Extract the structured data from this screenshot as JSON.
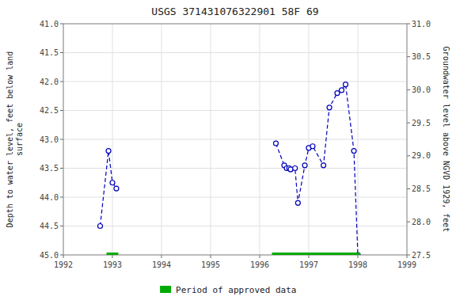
{
  "chart_data": {
    "type": "line",
    "title": "USGS 371431076322901 58F 69",
    "ylabel": "Depth to water level, feet below land\nsurface",
    "y2label": "Groundwater level above NGVD 1929, feet",
    "xlim": [
      1992,
      1999
    ],
    "xticks": [
      1992,
      1993,
      1994,
      1995,
      1996,
      1997,
      1998,
      1999
    ],
    "ylim": [
      45.0,
      41.0
    ],
    "yticks": [
      {
        "value": 41.0,
        "label": "41.0"
      },
      41.5,
      {
        "value": 42.0,
        "label": "42.0"
      },
      42.5,
      {
        "value": 43.0,
        "label": "43.0"
      },
      43.5,
      {
        "value": 44.0,
        "label": "44.0"
      },
      44.5,
      {
        "value": 45.0,
        "label": "45.0"
      }
    ],
    "y2lim": [
      27.5,
      31.0
    ],
    "y2ticks": [
      {
        "value": 31.0,
        "label": "31.0"
      },
      30.5,
      {
        "value": 30.0,
        "label": "30.0"
      },
      29.5,
      {
        "value": 29.0,
        "label": "29.0"
      },
      28.5,
      {
        "value": 28.0,
        "label": "28.0"
      },
      27.5
    ],
    "grid": true,
    "legend": "bottom",
    "series": [
      {
        "color": "#0000bb",
        "marker": "circle",
        "line_style": "dashed",
        "x": [
          1992.75,
          1992.92,
          1993.0,
          1993.08
        ],
        "values": [
          44.5,
          43.2,
          43.75,
          43.85
        ]
      },
      {
        "color": "#0000bb",
        "marker": "circle",
        "line_style": "dashed",
        "x": [
          1996.33,
          1996.5,
          1996.55,
          1996.6,
          1996.63,
          1996.72,
          1996.78,
          1996.92,
          1997.0,
          1997.08,
          1997.3,
          1997.42,
          1997.58,
          1997.67,
          1997.75,
          1997.92,
          1998.0
        ],
        "values": [
          43.07,
          43.45,
          43.5,
          43.5,
          43.52,
          43.5,
          44.1,
          43.45,
          43.15,
          43.12,
          43.45,
          42.45,
          42.2,
          42.15,
          42.05,
          43.2,
          45.0
        ]
      },
      {
        "name": "Period of approved data",
        "type": "range",
        "color": "#00aa00",
        "x_start": [
          1992.88,
          1996.25
        ],
        "x_end": [
          1993.12,
          1998.05
        ],
        "y": 45.0
      }
    ]
  }
}
